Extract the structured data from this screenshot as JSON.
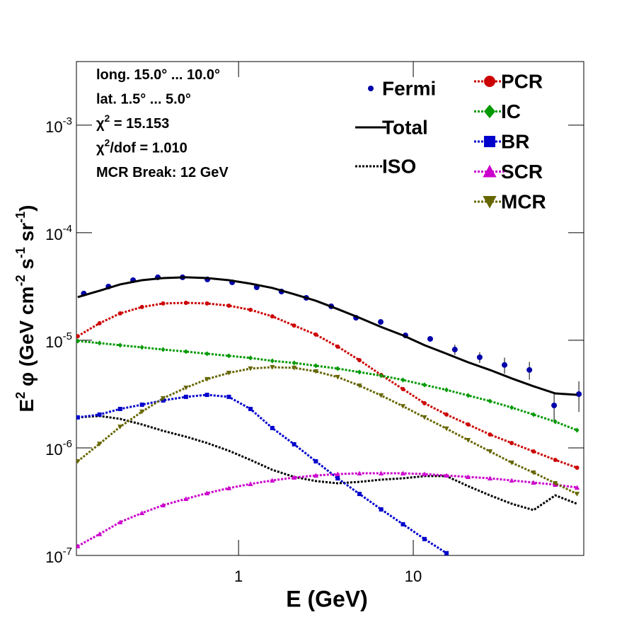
{
  "chart_data": {
    "type": "line",
    "xlabel": "E (GeV)",
    "ylabel": [
      "E",
      "2",
      " φ (GeV cm",
      "-2",
      " s",
      "-1",
      " sr",
      "-1",
      ")"
    ],
    "annotations": [
      [
        "long. 15.0° ... 10.0°"
      ],
      [
        "lat. 1.5° ... 5.0°"
      ],
      [
        "χ",
        "2",
        " = 15.153"
      ],
      [
        "χ",
        "2",
        "/dof = 1.010"
      ],
      [
        "MCR Break: 12 GeV"
      ]
    ],
    "xlog": true,
    "ylog": true,
    "xlim": [
      0.118,
      94.6
    ],
    "ylim": [
      1e-07,
      0.0039
    ],
    "xticks": [
      1,
      10
    ],
    "yticks": [
      {
        "value": 1e-07,
        "label": "10",
        "exponent": "-7"
      },
      {
        "value": 1e-06,
        "label": "10",
        "exponent": "-6"
      },
      {
        "value": 1e-05,
        "label": "10",
        "exponent": "-5"
      },
      {
        "value": 0.0001,
        "label": "10",
        "exponent": "-4"
      },
      {
        "value": 0.001,
        "label": "10",
        "exponent": "-3"
      }
    ],
    "legend": "top-right",
    "x": [
      0.12,
      0.16,
      0.21,
      0.28,
      0.37,
      0.5,
      0.66,
      0.88,
      1.17,
      1.56,
      2.08,
      2.77,
      3.69,
      4.92,
      6.55,
      8.73,
      11.6,
      15.5,
      20.6,
      27.5,
      36.6,
      48.8,
      65,
      86.6
    ],
    "series": [
      {
        "name": "Fermi",
        "color": "#0000aa",
        "line": "none",
        "marker": "circle",
        "x": [
          0.13,
          0.18,
          0.249,
          0.345,
          0.478,
          0.663,
          0.919,
          1.27,
          1.76,
          2.44,
          3.39,
          4.7,
          6.51,
          9.02,
          12.5,
          17.3,
          24,
          33.3,
          46.2,
          64,
          88.7
        ],
        "values": [
          2.72e-05,
          3.16e-05,
          3.62e-05,
          3.85e-05,
          3.85e-05,
          3.68e-05,
          3.46e-05,
          3.11e-05,
          2.84e-05,
          2.48e-05,
          2.07e-05,
          1.62e-05,
          1.48e-05,
          1.11e-05,
          1.03e-05,
          8.2e-06,
          6.95e-06,
          5.9e-06,
          5.3e-06,
          2.48e-06,
          3.16e-06
        ],
        "errors": [
          5e-07,
          5e-07,
          5e-07,
          5e-07,
          5e-07,
          5e-07,
          5e-07,
          5e-07,
          5e-07,
          4e-07,
          4e-07,
          4e-07,
          4e-07,
          5e-07,
          6e-07,
          9e-07,
          8e-07,
          1e-06,
          1e-06,
          7e-07,
          1e-06
        ]
      },
      {
        "name": "Total",
        "color": "#000000",
        "line": "solid",
        "marker": "none",
        "values": [
          2.52e-05,
          2.89e-05,
          3.31e-05,
          3.62e-05,
          3.79e-05,
          3.85e-05,
          3.79e-05,
          3.62e-05,
          3.36e-05,
          3.07e-05,
          2.68e-05,
          2.33e-05,
          1.95e-05,
          1.62e-05,
          1.33e-05,
          1.11e-05,
          9e-06,
          7.5e-06,
          6.25e-06,
          5.3e-06,
          4.42e-06,
          3.74e-06,
          3.21e-06,
          3.11e-06
        ]
      },
      {
        "name": "ISO",
        "color": "#000000",
        "line": "dotted",
        "marker": "none",
        "values": [
          1.92e-06,
          1.98e-06,
          1.86e-06,
          1.65e-06,
          1.44e-06,
          1.27e-06,
          1.11e-06,
          9.41e-07,
          7.73e-07,
          6.25e-07,
          5.37e-07,
          4.91e-07,
          4.69e-07,
          4.83e-07,
          5.06e-07,
          5.21e-07,
          5.46e-07,
          5.46e-07,
          4.41e-07,
          3.62e-07,
          3.02e-07,
          2.64e-07,
          3.62e-07,
          3.02e-07
        ]
      },
      {
        "name": "PCR",
        "color": "#cc0000",
        "line": "dotted",
        "marker": "circle",
        "values": [
          1.09e-05,
          1.44e-05,
          1.78e-05,
          2.04e-05,
          2.2e-05,
          2.23e-05,
          2.2e-05,
          2.1e-05,
          1.92e-05,
          1.67e-05,
          1.37e-05,
          1.13e-05,
          8.73e-06,
          6.54e-06,
          4.76e-06,
          3.52e-06,
          2.6e-06,
          2.04e-06,
          1.65e-06,
          1.33e-06,
          1.11e-06,
          9.27e-07,
          7.73e-07,
          6.54e-07
        ]
      },
      {
        "name": "IC",
        "color": "#009900",
        "line": "dotted",
        "marker": "diamond",
        "values": [
          9.85e-06,
          9.42e-06,
          9e-06,
          8.6e-06,
          8.2e-06,
          7.85e-06,
          7.5e-06,
          7.17e-06,
          6.85e-06,
          6.44e-06,
          6.16e-06,
          5.8e-06,
          5.46e-06,
          5.06e-06,
          4.69e-06,
          4.28e-06,
          3.85e-06,
          3.46e-06,
          3.07e-06,
          2.72e-06,
          2.37e-06,
          2.04e-06,
          1.75e-06,
          1.46e-06
        ]
      },
      {
        "name": "BR",
        "color": "#0000cc",
        "line": "dotted",
        "marker": "square",
        "values": [
          1.92e-06,
          2.04e-06,
          2.3e-06,
          2.52e-06,
          2.76e-06,
          2.98e-06,
          3.11e-06,
          2.98e-06,
          2.3e-06,
          1.53e-06,
          1.08e-06,
          7.5e-07,
          5.21e-07,
          3.73e-07,
          2.68e-07,
          1.95e-07,
          1.42e-07,
          1.05e-07,
          null,
          null,
          null,
          null,
          null,
          null
        ]
      },
      {
        "name": "SCR",
        "color": "#cc00cc",
        "line": "dotted",
        "marker": "triangle",
        "values": [
          1.22e-07,
          1.58e-07,
          2.04e-07,
          2.48e-07,
          2.93e-07,
          3.36e-07,
          3.79e-07,
          4.22e-07,
          4.62e-07,
          4.98e-07,
          5.3e-07,
          5.54e-07,
          5.71e-07,
          5.8e-07,
          5.8e-07,
          5.8e-07,
          5.71e-07,
          5.54e-07,
          5.37e-07,
          5.21e-07,
          4.98e-07,
          4.76e-07,
          4.55e-07,
          4.28e-07
        ]
      },
      {
        "name": "MCR",
        "color": "#666600",
        "line": "dotted",
        "marker": "triangle-down",
        "values": [
          7.5e-07,
          1.09e-06,
          1.57e-06,
          2.17e-06,
          2.89e-06,
          3.62e-06,
          4.35e-06,
          4.98e-06,
          5.46e-06,
          5.62e-06,
          5.54e-06,
          5.14e-06,
          4.55e-06,
          3.79e-06,
          3.07e-06,
          2.44e-06,
          1.92e-06,
          1.51e-06,
          1.18e-06,
          9.27e-07,
          7.28e-07,
          5.89e-07,
          4.69e-07,
          3.73e-07
        ]
      }
    ]
  }
}
